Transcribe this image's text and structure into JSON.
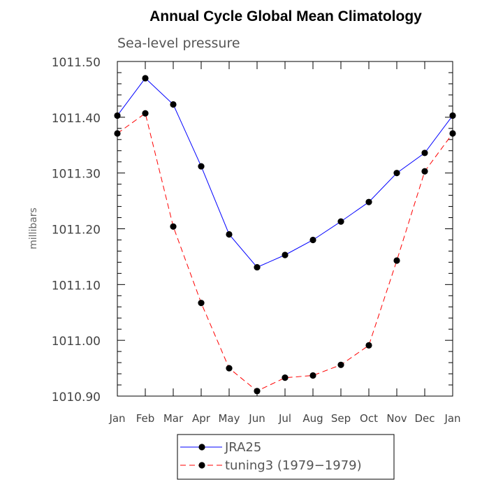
{
  "chart_data": {
    "type": "line",
    "title": "Annual Cycle Global Mean Climatology",
    "subtitle": "Sea-level pressure",
    "xlabel": "",
    "ylabel": "millibars",
    "categories": [
      "Jan",
      "Feb",
      "Mar",
      "Apr",
      "May",
      "Jun",
      "Jul",
      "Aug",
      "Sep",
      "Oct",
      "Nov",
      "Dec",
      "Jan"
    ],
    "ylim": [
      1010.9,
      1011.5
    ],
    "yticks": [
      1010.9,
      1011.0,
      1011.1,
      1011.2,
      1011.3,
      1011.4,
      1011.5
    ],
    "ytick_labels": [
      "1010.90",
      "1011.00",
      "1011.10",
      "1011.20",
      "1011.30",
      "1011.40",
      "1011.50"
    ],
    "grid": false,
    "legend_position": "bottom-center",
    "series": [
      {
        "name": "JRA25",
        "color": "#0000ff",
        "line_style": "solid",
        "marker": "filled-circle",
        "values": [
          1011.403,
          1011.47,
          1011.423,
          1011.312,
          1011.19,
          1011.131,
          1011.153,
          1011.18,
          1011.213,
          1011.248,
          1011.3,
          1011.336,
          1011.403
        ]
      },
      {
        "name": "tuning3 (1979−1979)",
        "color": "#ff0000",
        "line_style": "dashed",
        "marker": "filled-circle",
        "values": [
          1011.371,
          1011.407,
          1011.204,
          1011.067,
          1010.95,
          1010.909,
          1010.933,
          1010.937,
          1010.956,
          1010.991,
          1011.143,
          1011.303,
          1011.371
        ]
      }
    ]
  }
}
